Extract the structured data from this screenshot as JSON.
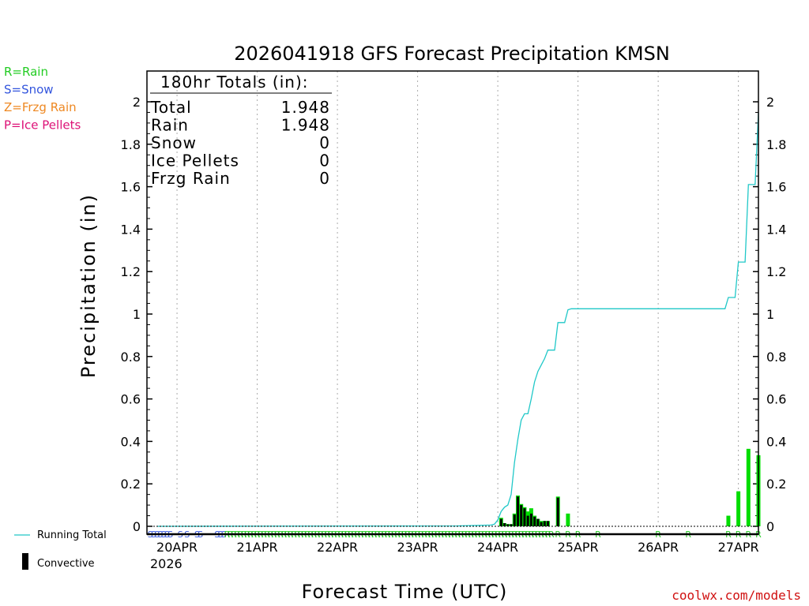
{
  "chart_data": {
    "type": "bar",
    "title": "2026041918 GFS Forecast Precipitation KMSN",
    "ylabel": "Precipitation (in)",
    "xlabel": "Forecast Time (UTC)",
    "ylim": [
      0,
      2.15
    ],
    "y_ticks": [
      "0",
      "0.2",
      "0.4",
      "0.6",
      "0.8",
      "1",
      "1.2",
      "1.4",
      "1.6",
      "1.8",
      "2"
    ],
    "x_range_hours": [
      -3,
      180
    ],
    "x_ticks": [
      {
        "hour": 6,
        "label": "20APR"
      },
      {
        "hour": 30,
        "label": "21APR"
      },
      {
        "hour": 54,
        "label": "22APR"
      },
      {
        "hour": 78,
        "label": "23APR"
      },
      {
        "hour": 102,
        "label": "24APR"
      },
      {
        "hour": 126,
        "label": "25APR"
      },
      {
        "hour": 150,
        "label": "26APR"
      },
      {
        "hour": 174,
        "label": "27APR"
      }
    ],
    "year_label": "2026",
    "running_total": {
      "name": "Running Total",
      "color": "#20c8c8",
      "hours": [
        0,
        90,
        100,
        101,
        102,
        103,
        104,
        105,
        106,
        107,
        108,
        109,
        110,
        111,
        112,
        113,
        114,
        115,
        116,
        117,
        118,
        119,
        120,
        121,
        122,
        123,
        124,
        125,
        126,
        127,
        170,
        171,
        172,
        173,
        174,
        175,
        176,
        177,
        178,
        179,
        180
      ],
      "values": [
        0,
        0.002,
        0.006,
        0.01,
        0.03,
        0.07,
        0.09,
        0.1,
        0.15,
        0.3,
        0.41,
        0.5,
        0.53,
        0.53,
        0.6,
        0.68,
        0.73,
        0.76,
        0.79,
        0.83,
        0.83,
        0.83,
        0.96,
        0.96,
        0.96,
        1.02,
        1.025,
        1.025,
        1.025,
        1.025,
        1.025,
        1.078,
        1.078,
        1.078,
        1.245,
        1.245,
        1.245,
        1.61,
        1.61,
        1.61,
        1.948
      ]
    },
    "series": [
      {
        "name": "Convective",
        "color": "#000000",
        "hours": [
          103,
          104,
          105,
          106,
          107,
          108,
          109,
          110,
          111,
          112,
          113,
          114,
          115,
          116,
          117,
          120
        ],
        "values": [
          0.035,
          0.015,
          0.01,
          0.01,
          0.055,
          0.14,
          0.1,
          0.085,
          0.05,
          0.06,
          0.045,
          0.035,
          0.02,
          0.025,
          0.025,
          0.135
        ]
      },
      {
        "name": "Rain",
        "color": "#00dd00",
        "hours": [
          103,
          104,
          105,
          106,
          107,
          108,
          109,
          110,
          111,
          112,
          113,
          114,
          115,
          116,
          117,
          120,
          123,
          171,
          174,
          177,
          180
        ],
        "values": [
          0.04,
          0.015,
          0.01,
          0.01,
          0.06,
          0.145,
          0.105,
          0.09,
          0.07,
          0.085,
          0.05,
          0.035,
          0.025,
          0.025,
          0.025,
          0.14,
          0.06,
          0.05,
          0.165,
          0.365,
          0.335
        ]
      }
    ]
  },
  "totals": {
    "header": "180hr Totals (in):",
    "rows": [
      {
        "label": "Total",
        "value": "1.948"
      },
      {
        "label": "Rain",
        "value": "1.948"
      },
      {
        "label": "Snow",
        "value": "0"
      },
      {
        "label": "Ice Pellets",
        "value": "0"
      },
      {
        "label": "Frzg Rain",
        "value": "0"
      }
    ]
  },
  "legend": {
    "types": [
      {
        "text": "R=Rain",
        "color": "#22cc22"
      },
      {
        "text": "S=Snow",
        "color": "#3355dd"
      },
      {
        "text": "Z=Frzg Rain",
        "color": "#ee8822"
      },
      {
        "text": "P=Ice Pellets",
        "color": "#dd1177"
      }
    ],
    "running_total_label": "Running Total",
    "convective_label": "Convective"
  },
  "ptype_markers": {
    "snow_color": "#3355dd",
    "rain_color": "#22cc22",
    "snow_hours": [
      -2,
      -1,
      0,
      1,
      2,
      3,
      4,
      7,
      9,
      12,
      13,
      18,
      19,
      20
    ],
    "snow_text": "S",
    "rain_text": "R",
    "rain_hours_dense_start": 21,
    "rain_hours_dense_end": 118,
    "rain_hours_sparse": [
      120,
      123,
      126,
      132,
      150,
      159,
      171,
      174,
      177,
      180
    ]
  },
  "credit": "coolwx.com/models"
}
